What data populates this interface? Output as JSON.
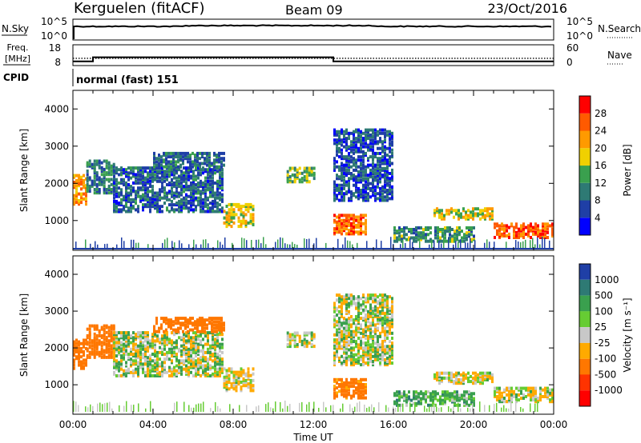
{
  "header": {
    "station": "Kerguelen (fitACF)",
    "beam": "Beam 09",
    "date": "23/Oct/2016"
  },
  "noise_panel": {
    "left_label": "N.Sky",
    "left_ticks": [
      "10^5",
      "10^0"
    ],
    "right_label": "N.Search",
    "right_ticks": [
      "10^5",
      "10^0"
    ]
  },
  "freq_panel": {
    "left_label_1": "Freq.",
    "left_label_2": "[MHz]",
    "left_ticks": [
      "18",
      "8"
    ],
    "right_label": "Nave",
    "right_ticks": [
      "60",
      "0"
    ]
  },
  "cpid_panel": {
    "label": "CPID",
    "mode_text": "normal (fast) 151"
  },
  "x_axis": {
    "label": "Time UT",
    "ticks": [
      "00:00",
      "04:00",
      "08:00",
      "12:00",
      "16:00",
      "20:00",
      "00:00"
    ]
  },
  "range_axis": {
    "label": "Slant Range [km]",
    "ticks": [
      "1000",
      "2000",
      "3000",
      "4000"
    ]
  },
  "power_bar": {
    "label": "Power [dB]",
    "ticks": [
      "4",
      "8",
      "12",
      "16",
      "20",
      "24",
      "28"
    ],
    "colors": [
      "#0000ff",
      "#1f3fa6",
      "#2e7a74",
      "#3aa04e",
      "#f0d000",
      "#ff9a00",
      "#ff5a00",
      "#ff0000"
    ]
  },
  "velocity_bar": {
    "label": "Velocity [m s⁻¹]",
    "ticks": [
      "1000",
      "500",
      "100",
      "25",
      "-25",
      "-100",
      "-500",
      "-1000"
    ],
    "colors": [
      "#1f3fa6",
      "#2e7a74",
      "#3aa04e",
      "#66cc33",
      "#c8c8c8",
      "#ffaa00",
      "#ff7700",
      "#ff3300",
      "#ff0000"
    ]
  },
  "chart_data": {
    "type": "heatmap",
    "title": "Kerguelen (fitACF)",
    "xlabel": "Time UT",
    "ylabel": "Slant Range [km]",
    "xlim": [
      "00:00",
      "24:00"
    ],
    "ylim": [
      200,
      4500
    ],
    "frequency_MHz": [
      {
        "from": "00:00",
        "to": "01:00",
        "value": 10
      },
      {
        "from": "01:00",
        "to": "13:00",
        "value": 12
      },
      {
        "from": "13:00",
        "to": "24:00",
        "value": 10
      }
    ],
    "nave_level": 21,
    "echo_regions": [
      {
        "start": "00:00",
        "end": "00:40",
        "range_min": 1400,
        "range_max": 2200,
        "power_db": 22,
        "velocity": -300
      },
      {
        "start": "00:40",
        "end": "02:00",
        "range_min": 1700,
        "range_max": 2600,
        "power_db": 10,
        "velocity": -300
      },
      {
        "start": "02:00",
        "end": "07:30",
        "range_min": 1200,
        "range_max": 2400,
        "power_db": 8,
        "velocity": 0
      },
      {
        "start": "04:00",
        "end": "07:30",
        "range_min": 2400,
        "range_max": 2800,
        "power_db": 9,
        "velocity": -200
      },
      {
        "start": "07:30",
        "end": "09:00",
        "range_min": 800,
        "range_max": 1400,
        "power_db": 18,
        "velocity": -20
      },
      {
        "start": "10:40",
        "end": "12:00",
        "range_min": 2000,
        "range_max": 2400,
        "power_db": 15,
        "velocity": -10
      },
      {
        "start": "13:00",
        "end": "14:40",
        "range_min": 600,
        "range_max": 1100,
        "power_db": 25,
        "velocity": -150
      },
      {
        "start": "13:00",
        "end": "16:00",
        "range_min": 1500,
        "range_max": 3400,
        "power_db": 7,
        "velocity": 0
      },
      {
        "start": "16:00",
        "end": "20:00",
        "range_min": 400,
        "range_max": 800,
        "power_db": 12,
        "velocity": 50
      },
      {
        "start": "18:00",
        "end": "21:00",
        "range_min": 1000,
        "range_max": 1300,
        "power_db": 18,
        "velocity": -20
      },
      {
        "start": "21:00",
        "end": "24:00",
        "range_min": 500,
        "range_max": 900,
        "power_db": 26,
        "velocity": -20
      }
    ]
  }
}
